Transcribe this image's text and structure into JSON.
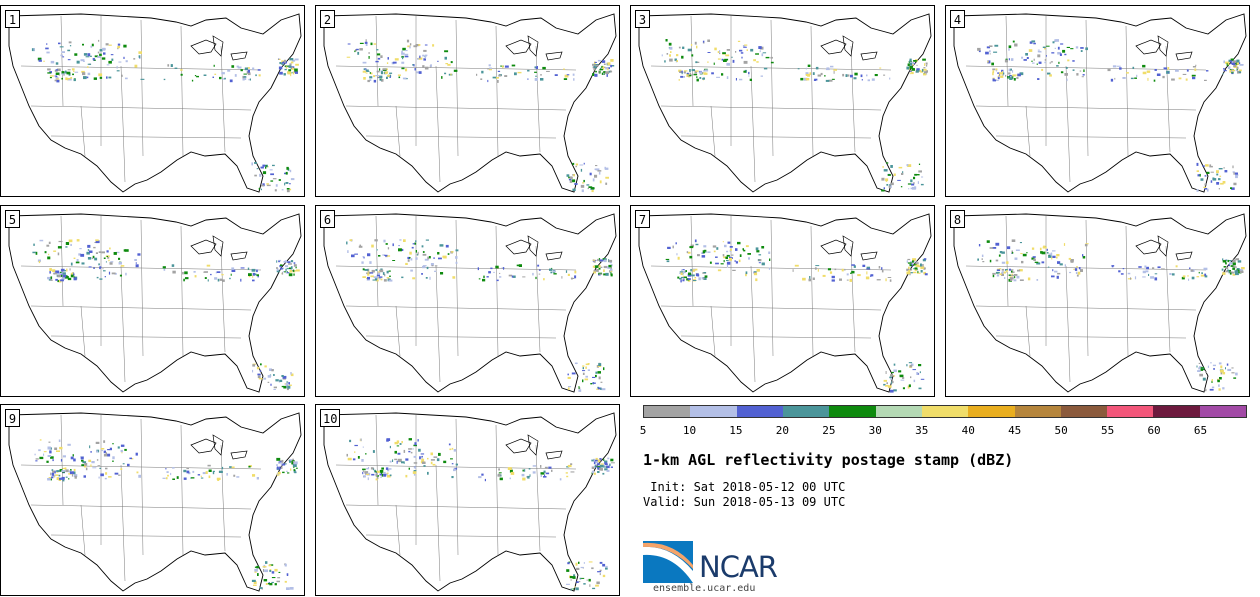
{
  "panels": [
    {
      "label": "1"
    },
    {
      "label": "2"
    },
    {
      "label": "3"
    },
    {
      "label": "4"
    },
    {
      "label": "5"
    },
    {
      "label": "6"
    },
    {
      "label": "7"
    },
    {
      "label": "8"
    },
    {
      "label": "9"
    },
    {
      "label": "10"
    }
  ],
  "colorbar": {
    "colors": [
      "#a3a3a3",
      "#b3bfe6",
      "#5261d2",
      "#4b959a",
      "#0e8a0e",
      "#b4d9b4",
      "#f0dd6a",
      "#e9ae1f",
      "#b5853c",
      "#8b5a3c",
      "#f2567a",
      "#6d1a3e",
      "#a24aa6"
    ],
    "labels": [
      "5",
      "10",
      "15",
      "20",
      "25",
      "30",
      "35",
      "40",
      "45",
      "50",
      "55",
      "60",
      "65"
    ]
  },
  "title": "1-km AGL reflectivity postage stamp (dBZ)",
  "init": " Init: Sat 2018-05-12 00 UTC",
  "valid": "Valid: Sun 2018-05-13 09 UTC",
  "logo": {
    "text": "NCAR",
    "url": "ensemble.ucar.edu"
  }
}
